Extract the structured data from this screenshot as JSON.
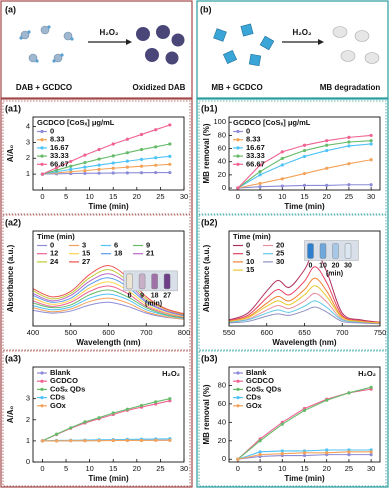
{
  "schematics": [
    {
      "panel_label": "(a)",
      "reagent": "H₂O₂",
      "left": "DAB + GCDCO",
      "right": "Oxidized DAB"
    },
    {
      "panel_label": "(b)",
      "reagent": "H₂O₂",
      "left": "MB + GCDCO",
      "right": "MB degradation"
    }
  ],
  "chart_data": [
    {
      "type": "line",
      "panel_label": "(a1)",
      "x_label": "Time (min)",
      "y_label": "A/A₀",
      "markers": true,
      "smooth": false,
      "legend_title": "GCDCO [CoSₓ] μg/mL",
      "legend": "upper left",
      "legend_columns": 1,
      "x": [
        0,
        3,
        6,
        9,
        12,
        15,
        18,
        21,
        24,
        27
      ],
      "xlim": [
        -2,
        30
      ],
      "xticks": [
        0,
        5,
        10,
        15,
        20,
        25,
        30
      ],
      "ylim": [
        0,
        4.6
      ],
      "yticks": [
        1,
        2,
        3,
        4
      ],
      "series": [
        {
          "name": "0",
          "color": "#8c8cd8",
          "values": [
            1.0,
            1.02,
            1.04,
            1.05,
            1.06,
            1.07,
            1.08,
            1.09,
            1.1,
            1.1
          ]
        },
        {
          "name": "8.33",
          "color": "#f4a259",
          "values": [
            1.0,
            1.08,
            1.15,
            1.22,
            1.3,
            1.37,
            1.44,
            1.5,
            1.56,
            1.62
          ]
        },
        {
          "name": "16.67",
          "color": "#4fc3f7",
          "values": [
            1.0,
            1.15,
            1.3,
            1.44,
            1.57,
            1.7,
            1.82,
            1.93,
            2.03,
            2.12
          ]
        },
        {
          "name": "33.33",
          "color": "#66bb6a",
          "values": [
            1.0,
            1.25,
            1.5,
            1.73,
            1.95,
            2.15,
            2.35,
            2.55,
            2.72,
            2.9
          ]
        },
        {
          "name": "66.67",
          "color": "#f06292",
          "values": [
            1.0,
            1.4,
            1.8,
            2.2,
            2.55,
            2.9,
            3.2,
            3.5,
            3.8,
            4.1
          ]
        }
      ]
    },
    {
      "type": "line",
      "panel_label": "(a2)",
      "x_label": "Wavelength (nm)",
      "y_label": "Absorbance (a.u.)",
      "markers": false,
      "smooth": true,
      "legend_title": "Time (min)",
      "legend": "upper left",
      "legend_columns": 4,
      "x": [
        400,
        450,
        500,
        550,
        600,
        650,
        700,
        750,
        800
      ],
      "xlim": [
        400,
        800
      ],
      "xticks": [
        400,
        500,
        600,
        700,
        800
      ],
      "ylim": [
        0,
        1.4
      ],
      "inset": {
        "labels": [
          "0",
          "9",
          "18",
          "27"
        ],
        "unit": "(min)",
        "colors": [
          "#ece4d4",
          "#c8b0c8",
          "#a070a8",
          "#6e3f88"
        ]
      },
      "series": [
        {
          "name": "0",
          "color": "#8c8cd8",
          "values": [
            0.23,
            0.19,
            0.22,
            0.31,
            0.35,
            0.29,
            0.19,
            0.13,
            0.1
          ]
        },
        {
          "name": "3",
          "color": "#f4a259",
          "values": [
            0.27,
            0.21,
            0.25,
            0.36,
            0.41,
            0.34,
            0.21,
            0.14,
            0.1
          ]
        },
        {
          "name": "6",
          "color": "#4fc3f7",
          "values": [
            0.3,
            0.24,
            0.28,
            0.41,
            0.47,
            0.39,
            0.24,
            0.16,
            0.11
          ]
        },
        {
          "name": "9",
          "color": "#66bb6a",
          "values": [
            0.34,
            0.27,
            0.31,
            0.46,
            0.53,
            0.43,
            0.27,
            0.17,
            0.12
          ]
        },
        {
          "name": "12",
          "color": "#f06292",
          "values": [
            0.37,
            0.29,
            0.35,
            0.51,
            0.59,
            0.48,
            0.29,
            0.19,
            0.13
          ]
        },
        {
          "name": "15",
          "color": "#ffd54f",
          "values": [
            0.41,
            0.32,
            0.38,
            0.56,
            0.65,
            0.53,
            0.32,
            0.2,
            0.14
          ]
        },
        {
          "name": "18",
          "color": "#5c9ded",
          "values": [
            0.45,
            0.35,
            0.41,
            0.61,
            0.71,
            0.58,
            0.35,
            0.22,
            0.15
          ]
        },
        {
          "name": "21",
          "color": "#ba68c8",
          "values": [
            0.48,
            0.37,
            0.45,
            0.66,
            0.77,
            0.63,
            0.37,
            0.23,
            0.16
          ]
        },
        {
          "name": "24",
          "color": "#c0ca33",
          "values": [
            0.52,
            0.4,
            0.48,
            0.71,
            0.83,
            0.67,
            0.4,
            0.25,
            0.17
          ]
        },
        {
          "name": "27",
          "color": "#ef5350",
          "values": [
            0.55,
            0.43,
            0.51,
            0.76,
            0.89,
            0.72,
            0.43,
            0.26,
            0.18
          ]
        }
      ]
    },
    {
      "type": "line",
      "panel_label": "(a3)",
      "x_label": "Time (min)",
      "y_label": "A/A₀",
      "markers": true,
      "smooth": false,
      "annotation": "H₂O₂",
      "legend": "upper left",
      "legend_columns": 1,
      "x": [
        0,
        3,
        6,
        9,
        12,
        15,
        18,
        21,
        24,
        27
      ],
      "xlim": [
        -2,
        30
      ],
      "xticks": [
        0,
        5,
        10,
        15,
        20,
        25,
        30
      ],
      "ylim": [
        0,
        4.5
      ],
      "yticks": [
        0,
        1,
        2,
        3
      ],
      "series": [
        {
          "name": "Blank",
          "color": "#8c8cd8",
          "values": [
            1.0,
            1.0,
            1.01,
            1.01,
            1.02,
            1.02,
            1.02,
            1.03,
            1.03,
            1.03
          ]
        },
        {
          "name": "GCDCO",
          "color": "#f06292",
          "values": [
            1.0,
            1.3,
            1.6,
            1.85,
            2.05,
            2.25,
            2.45,
            2.6,
            2.75,
            2.9
          ]
        },
        {
          "name": "CoSₓ QDs",
          "color": "#66bb6a",
          "values": [
            1.0,
            1.32,
            1.62,
            1.9,
            2.1,
            2.32,
            2.5,
            2.68,
            2.85,
            3.0
          ]
        },
        {
          "name": "CDs",
          "color": "#4fc3f7",
          "values": [
            1.0,
            1.02,
            1.03,
            1.04,
            1.05,
            1.06,
            1.07,
            1.08,
            1.09,
            1.1
          ]
        },
        {
          "name": "GOx",
          "color": "#f4a259",
          "values": [
            1.0,
            1.0,
            1.01,
            1.01,
            1.01,
            1.02,
            1.02,
            1.02,
            1.03,
            1.03
          ]
        }
      ]
    },
    {
      "type": "line",
      "panel_label": "(b1)",
      "x_label": "Time (min)",
      "y_label": "MB removal (%)",
      "markers": true,
      "smooth": false,
      "legend_title": "GCDCO [CoSₓ] μg/mL",
      "legend": "upper left",
      "legend_columns": 1,
      "x": [
        0,
        5,
        10,
        15,
        20,
        25,
        30
      ],
      "xlim": [
        -2,
        32
      ],
      "xticks": [
        0,
        5,
        10,
        15,
        20,
        25,
        30
      ],
      "ylim": [
        -3,
        108
      ],
      "yticks": [
        0,
        20,
        40,
        60,
        80,
        100
      ],
      "series": [
        {
          "name": "0",
          "color": "#8c8cd8",
          "values": [
            0,
            2,
            3,
            4,
            4,
            5,
            5
          ]
        },
        {
          "name": "8.33",
          "color": "#f4a259",
          "values": [
            0,
            7,
            14,
            22,
            30,
            37,
            43
          ]
        },
        {
          "name": "16.67",
          "color": "#4fc3f7",
          "values": [
            0,
            20,
            35,
            48,
            57,
            64,
            67
          ]
        },
        {
          "name": "33.33",
          "color": "#66bb6a",
          "values": [
            0,
            25,
            45,
            57,
            65,
            70,
            72
          ]
        },
        {
          "name": "66.67",
          "color": "#f06292",
          "values": [
            0,
            35,
            55,
            65,
            72,
            77,
            80
          ]
        }
      ]
    },
    {
      "type": "line",
      "panel_label": "(b2)",
      "x_label": "Wavelength (nm)",
      "y_label": "Absorbance (a.u.)",
      "markers": false,
      "smooth": true,
      "legend_title": "Time (min)",
      "legend": "upper left",
      "legend_columns": 2,
      "x": [
        550,
        575,
        600,
        615,
        630,
        650,
        664,
        680,
        700,
        725,
        750
      ],
      "xlim": [
        550,
        750
      ],
      "xticks": [
        550,
        600,
        650,
        700,
        750
      ],
      "ylim": [
        0,
        1.25
      ],
      "inset": {
        "labels": [
          "0",
          "10",
          "20",
          "30"
        ],
        "unit": "(min)",
        "colors": [
          "#2f7fd0",
          "#6fa8dc",
          "#a8c8e8",
          "#dce6f0"
        ]
      },
      "series": [
        {
          "name": "0",
          "color": "#b03060",
          "values": [
            0.08,
            0.17,
            0.46,
            0.6,
            0.51,
            0.74,
            0.98,
            0.7,
            0.17,
            0.08,
            0.05
          ]
        },
        {
          "name": "20",
          "color": "#e890a0",
          "values": [
            0.05,
            0.09,
            0.21,
            0.27,
            0.23,
            0.33,
            0.43,
            0.31,
            0.09,
            0.05,
            0.04
          ]
        },
        {
          "name": "5",
          "color": "#e84060",
          "values": [
            0.07,
            0.14,
            0.37,
            0.48,
            0.41,
            0.59,
            0.78,
            0.56,
            0.14,
            0.07,
            0.05
          ]
        },
        {
          "name": "25",
          "color": "#60c8e8",
          "values": [
            0.05,
            0.08,
            0.17,
            0.21,
            0.18,
            0.26,
            0.33,
            0.24,
            0.08,
            0.05,
            0.04
          ]
        },
        {
          "name": "10",
          "color": "#f08030",
          "values": [
            0.06,
            0.12,
            0.3,
            0.39,
            0.33,
            0.48,
            0.63,
            0.45,
            0.12,
            0.06,
            0.04
          ]
        },
        {
          "name": "30",
          "color": "#9090c0",
          "values": [
            0.04,
            0.06,
            0.13,
            0.16,
            0.14,
            0.2,
            0.25,
            0.18,
            0.06,
            0.04,
            0.03
          ]
        },
        {
          "name": "15",
          "color": "#e8c830",
          "values": [
            0.06,
            0.11,
            0.26,
            0.33,
            0.28,
            0.41,
            0.53,
            0.38,
            0.11,
            0.06,
            0.04
          ]
        }
      ]
    },
    {
      "type": "line",
      "panel_label": "(b3)",
      "x_label": "Time (min)",
      "y_label": "MB removal (%)",
      "markers": true,
      "smooth": false,
      "annotation": "H₂O₂",
      "legend": "upper left",
      "legend_columns": 1,
      "x": [
        0,
        5,
        10,
        15,
        20,
        25,
        30
      ],
      "xlim": [
        -2,
        32
      ],
      "xticks": [
        0,
        5,
        10,
        15,
        20,
        25,
        30
      ],
      "ylim": [
        -3,
        100
      ],
      "yticks": [
        0,
        20,
        40,
        60,
        80
      ],
      "series": [
        {
          "name": "Blank",
          "color": "#8c8cd8",
          "values": [
            0,
            3,
            4,
            4,
            5,
            5,
            5
          ]
        },
        {
          "name": "GCDCO",
          "color": "#f06292",
          "values": [
            0,
            22,
            40,
            55,
            65,
            72,
            76
          ]
        },
        {
          "name": "CoSₓ QDs",
          "color": "#66bb6a",
          "values": [
            0,
            20,
            38,
            53,
            64,
            72,
            78
          ]
        },
        {
          "name": "CDs",
          "color": "#4fc3f7",
          "values": [
            0,
            8,
            9,
            9,
            10,
            10,
            10
          ]
        },
        {
          "name": "GOx",
          "color": "#f4a259",
          "values": [
            0,
            5,
            6,
            7,
            7,
            8,
            8
          ]
        }
      ]
    }
  ]
}
